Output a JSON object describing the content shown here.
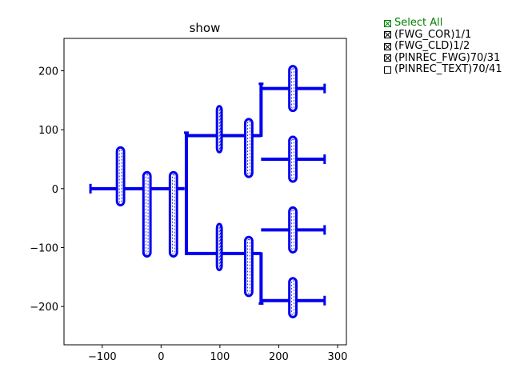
{
  "title": "show",
  "colors": {
    "route": "#0000ee",
    "axes": "#000000",
    "select_all": "#008000",
    "item": "#000000"
  },
  "axes": {
    "xlim": [
      -165,
      315
    ],
    "ylim": [
      -265,
      255
    ],
    "x_ticks": [
      -100,
      0,
      100,
      200,
      300
    ],
    "y_ticks": [
      200,
      100,
      0,
      -100,
      -200
    ],
    "x_tick_labels": [
      "−100",
      "0",
      "100",
      "200",
      "300"
    ],
    "y_tick_labels": [
      "200",
      "100",
      "0",
      "−100",
      "−200"
    ]
  },
  "legend": {
    "select_all": {
      "label": "Select All",
      "checked": true
    },
    "items": [
      {
        "label": "(FWG_COR)1/1",
        "checked": true
      },
      {
        "label": "(FWG_CLD)1/2",
        "checked": true
      },
      {
        "label": "(PINREC_FWG)70/31",
        "checked": true
      },
      {
        "label": "(PINREC_TEXT)70/41",
        "checked": false
      }
    ]
  },
  "chart_data": {
    "type": "layout",
    "title": "show",
    "xlim": [
      -165,
      315
    ],
    "ylim": [
      -265,
      255
    ],
    "horizontal_waveguides": [
      [
        -120,
        -75,
        0
      ],
      [
        -63,
        -30,
        0
      ],
      [
        -18,
        15,
        0
      ],
      [
        27,
        40,
        0
      ],
      [
        45,
        95,
        90
      ],
      [
        103,
        143,
        90
      ],
      [
        155,
        170,
        90
      ],
      [
        45,
        95,
        -110
      ],
      [
        103,
        143,
        -110
      ],
      [
        155,
        170,
        -110
      ],
      [
        170,
        218,
        170
      ],
      [
        230,
        278,
        170
      ],
      [
        170,
        218,
        50
      ],
      [
        230,
        278,
        50
      ],
      [
        170,
        218,
        -70
      ],
      [
        230,
        278,
        -70
      ],
      [
        170,
        218,
        -190
      ],
      [
        230,
        278,
        -190
      ]
    ],
    "vertical_risers": [
      [
        43,
        -113,
        95
      ],
      [
        170,
        88,
        178
      ],
      [
        170,
        -195,
        -108
      ]
    ],
    "loops": [
      {
        "x": [
          -75,
          -63
        ],
        "y": [
          -28,
          70
        ]
      },
      {
        "x": [
          -30,
          -18
        ],
        "y": [
          -115,
          28
        ]
      },
      {
        "x": [
          15,
          27
        ],
        "y": [
          -115,
          28
        ]
      },
      {
        "x": [
          95,
          103
        ],
        "y": [
          62,
          140
        ]
      },
      {
        "x": [
          143,
          155
        ],
        "y": [
          20,
          118
        ]
      },
      {
        "x": [
          95,
          103
        ],
        "y": [
          -138,
          -60
        ]
      },
      {
        "x": [
          143,
          155
        ],
        "y": [
          -182,
          -82
        ]
      },
      {
        "x": [
          218,
          230
        ],
        "y": [
          132,
          208
        ]
      },
      {
        "x": [
          218,
          230
        ],
        "y": [
          12,
          88
        ]
      },
      {
        "x": [
          218,
          230
        ],
        "y": [
          -108,
          -32
        ]
      },
      {
        "x": [
          218,
          230
        ],
        "y": [
          -218,
          -152
        ]
      }
    ],
    "ports": [
      [
        -120,
        0
      ],
      [
        278,
        170
      ],
      [
        278,
        50
      ],
      [
        278,
        -70
      ],
      [
        278,
        -190
      ],
      [
        43,
        95
      ],
      [
        170,
        178
      ],
      [
        170,
        -195
      ]
    ]
  }
}
